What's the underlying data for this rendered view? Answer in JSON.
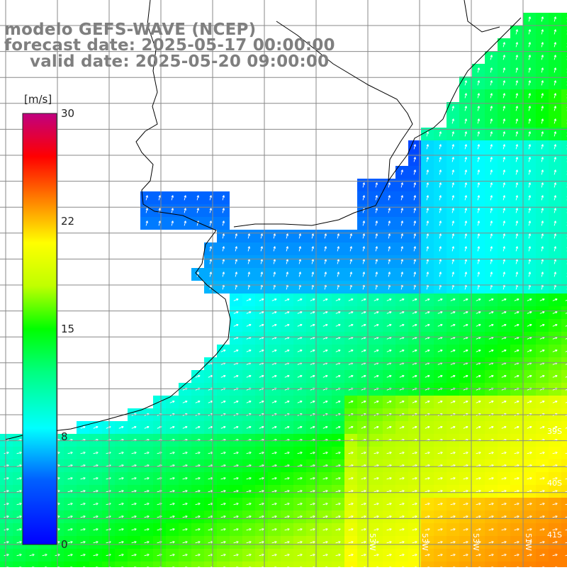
{
  "map": {
    "title_lines": [
      "modelo GEFS-WAVE (NCEP)",
      "forecast date: 2025-05-17 00:00:00",
      "valid date: 2025-05-20 09:00:00"
    ],
    "variable": "wind speed",
    "unit_label": "[m/s]",
    "colorbar": {
      "min": 0,
      "max": 30,
      "tick_labels": [
        "30",
        "22",
        "15",
        "8",
        "0"
      ],
      "tick_values": [
        30,
        22,
        15,
        8,
        0
      ],
      "colors": [
        "#0000ff",
        "#0080ff",
        "#00ffff",
        "#00ff80",
        "#00ff00",
        "#80ff00",
        "#ffff00",
        "#ff8000",
        "#ff0000",
        "#c00080"
      ]
    },
    "latitude_labels": [
      "39S",
      "40S",
      "41S"
    ],
    "longitude_labels": [
      "53W",
      "53W",
      "53W",
      "51W"
    ],
    "land_color": "#ffffff",
    "coastline_color": "#000000",
    "grid_color": "#808080",
    "arrow_color": "#ffffff"
  }
}
